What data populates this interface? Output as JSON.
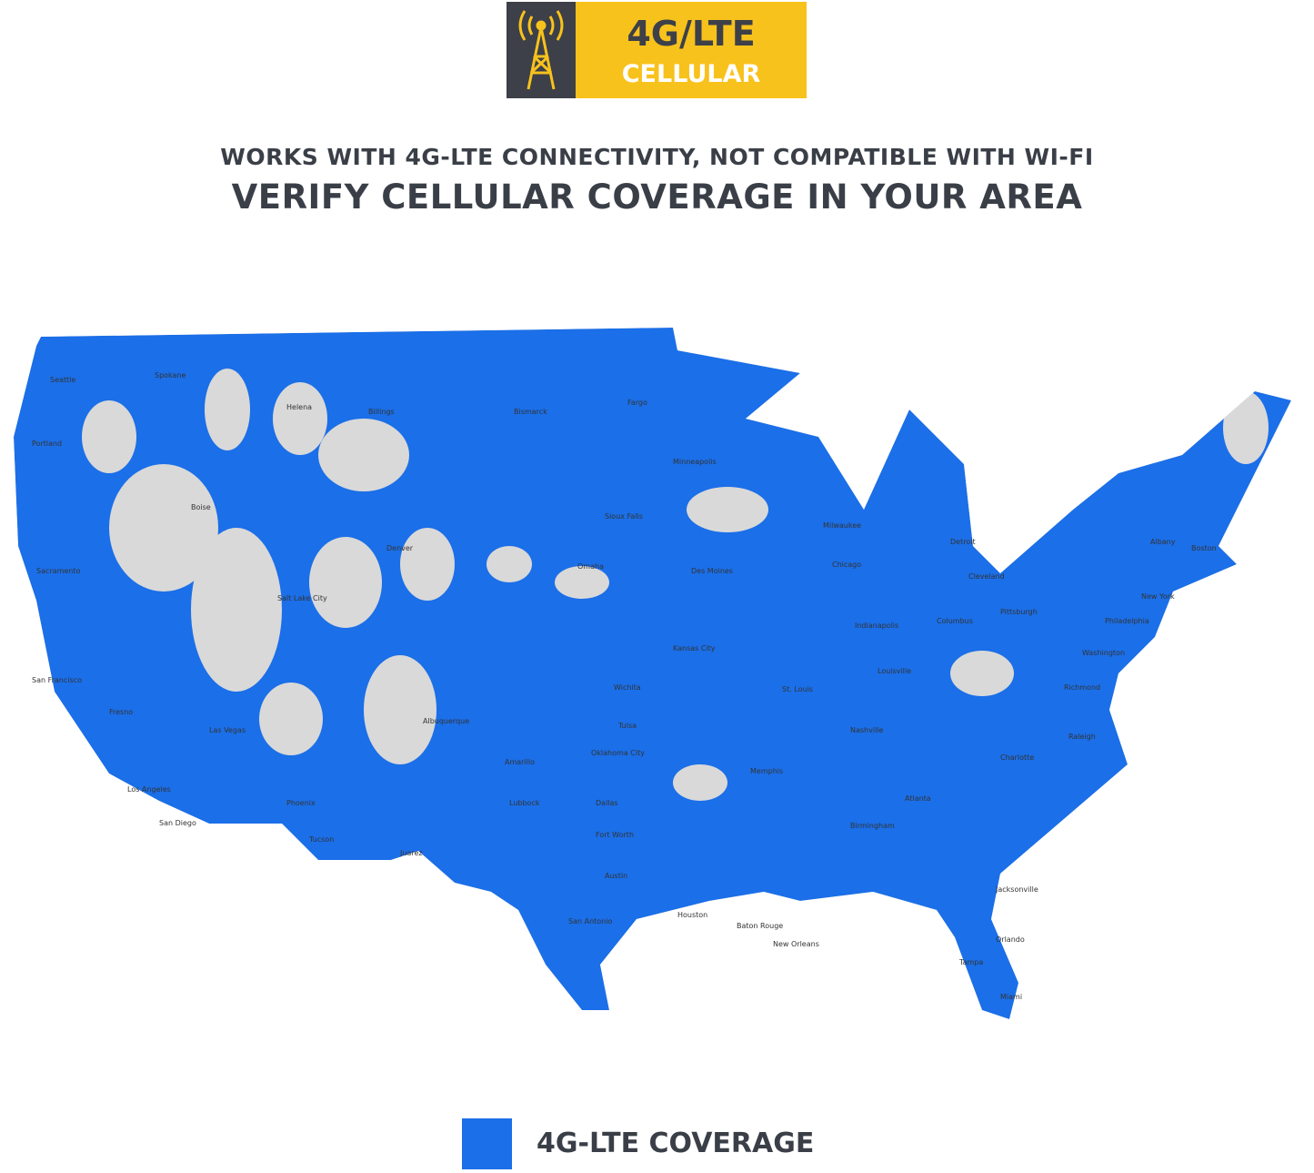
{
  "badge": {
    "line1": "4G/LTE",
    "line2": "CELLULAR"
  },
  "subtitle": "WORKS WITH 4G-LTE CONNECTIVITY, NOT COMPATIBLE WITH WI-FI",
  "headline": "VERIFY CELLULAR COVERAGE IN YOUR AREA",
  "map": {
    "cities": [
      "Seattle",
      "Portland",
      "Spokane",
      "Boise",
      "Helena",
      "Billings",
      "Sacramento",
      "San Francisco",
      "Fresno",
      "Las Vegas",
      "Los Angeles",
      "San Diego",
      "Phoenix",
      "Tucson",
      "Salt Lake City",
      "Denver",
      "Albuquerque",
      "Juarez",
      "Bismarck",
      "Fargo",
      "Minneapolis",
      "Sioux Falls",
      "Omaha",
      "Des Moines",
      "Kansas City",
      "Wichita",
      "Oklahoma City",
      "Tulsa",
      "Amarillo",
      "Lubbock",
      "Dallas",
      "Fort Worth",
      "Austin",
      "San Antonio",
      "Houston",
      "Baton Rouge",
      "New Orleans",
      "Memphis",
      "Nashville",
      "St. Louis",
      "Chicago",
      "Milwaukee",
      "Detroit",
      "Indianapolis",
      "Columbus",
      "Cleveland",
      "Louisville",
      "Pittsburgh",
      "Atlanta",
      "Birmingham",
      "Charlotte",
      "Raleigh",
      "Richmond",
      "Washington",
      "Philadelphia",
      "New York",
      "Boston",
      "Albany",
      "Jacksonville",
      "Orlando",
      "Tampa",
      "Miami"
    ]
  },
  "legend": {
    "label": "4G-LTE COVERAGE"
  }
}
